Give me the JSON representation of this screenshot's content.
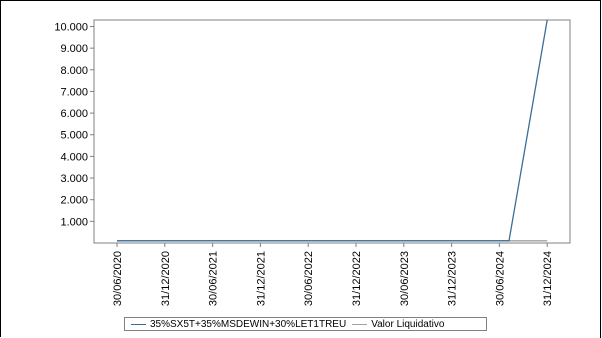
{
  "chart_data": {
    "type": "line",
    "title": "",
    "xlabel": "",
    "ylabel": "",
    "categories": [
      "30/06/2020",
      "31/12/2020",
      "30/06/2021",
      "31/12/2021",
      "30/06/2022",
      "31/12/2022",
      "30/06/2023",
      "31/12/2023",
      "30/06/2024",
      "31/12/2024"
    ],
    "y_tick_labels": [
      "1.000",
      "2.000",
      "3.000",
      "4.000",
      "5.000",
      "6.000",
      "7.000",
      "8.000",
      "9.000",
      "10.000"
    ],
    "y_ticks": [
      1000,
      2000,
      3000,
      4000,
      5000,
      6000,
      7000,
      8000,
      9000,
      10000
    ],
    "ylim": [
      0,
      10300
    ],
    "grid": false,
    "legend_position": "bottom",
    "series": [
      {
        "name": "35%SX5T+35%MSDEWIN+30%LET1TREU",
        "color": "#3a6e99",
        "x": [
          0,
          8.2,
          9.0
        ],
        "y": [
          100,
          100,
          10300
        ]
      },
      {
        "name": "Valor Liquidativo",
        "color": "#a0a0a0",
        "x": [
          0,
          9.0
        ],
        "y": [
          100,
          100
        ]
      }
    ]
  }
}
